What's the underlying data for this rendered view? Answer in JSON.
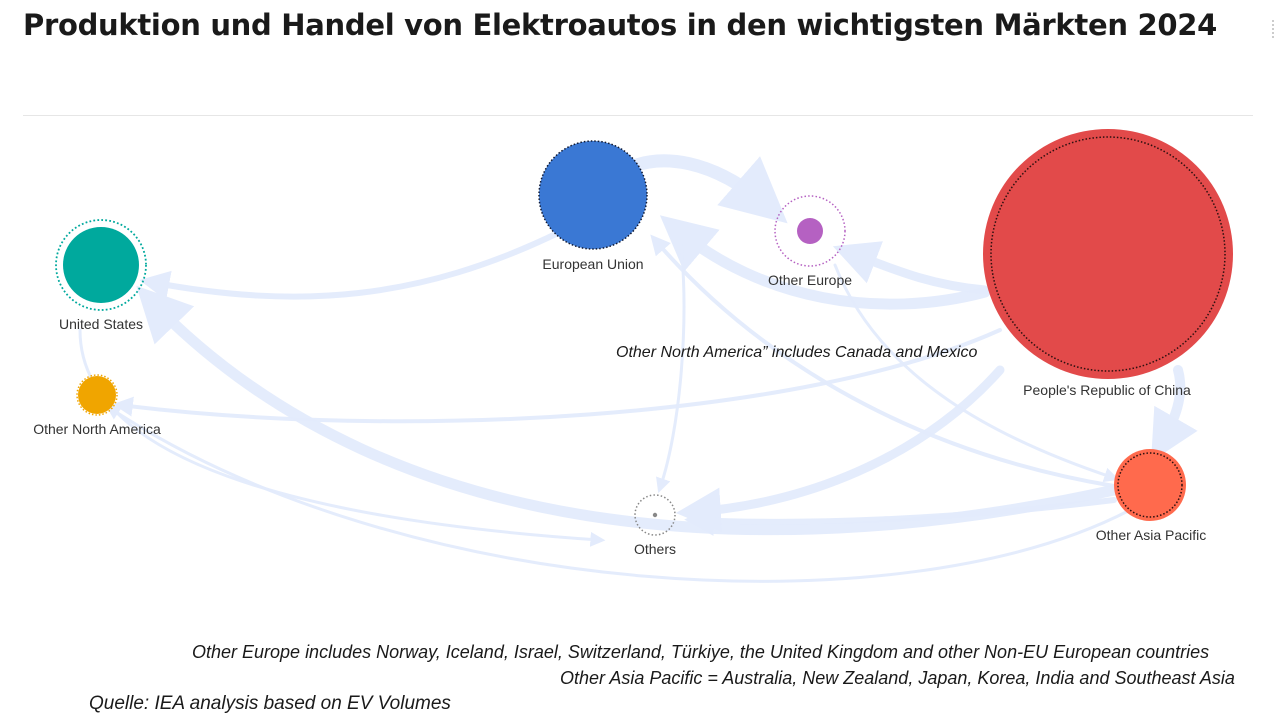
{
  "title": "Produktion und Handel von Elektroautos in den wichtigsten Märkten 2024",
  "nodes": [
    {
      "id": "china",
      "label": "People's Republic of China",
      "color": "#e24a4a"
    },
    {
      "id": "eu",
      "label": "European Union",
      "color": "#3a78d4"
    },
    {
      "id": "us",
      "label": "United States",
      "color": "#00a99d"
    },
    {
      "id": "other-europe",
      "label": "Other Europe",
      "color": "#b561c2"
    },
    {
      "id": "other-na",
      "label": "Other North America",
      "color": "#f0a500"
    },
    {
      "id": "other-ap",
      "label": "Other Asia Pacific",
      "color": "#ff6a4d"
    },
    {
      "id": "others",
      "label": "Others",
      "color": "#888888"
    }
  ],
  "flows": [
    {
      "from": "eu",
      "to": "other-europe"
    },
    {
      "from": "china",
      "to": "eu"
    },
    {
      "from": "china",
      "to": "other-europe"
    },
    {
      "from": "china",
      "to": "other-ap"
    },
    {
      "from": "china",
      "to": "others"
    },
    {
      "from": "china",
      "to": "other-na"
    },
    {
      "from": "eu",
      "to": "us"
    },
    {
      "from": "eu",
      "to": "others"
    },
    {
      "from": "other-ap",
      "to": "us"
    },
    {
      "from": "other-ap",
      "to": "eu"
    },
    {
      "from": "other-ap",
      "to": "others"
    },
    {
      "from": "other-ap",
      "to": "other-na"
    },
    {
      "from": "us",
      "to": "other-ap"
    },
    {
      "from": "other-europe",
      "to": "other-ap"
    }
  ],
  "notes": {
    "other_north_america": "Other North America” includes Canada and Mexico",
    "other_europe": "Other Europe includes Norway, Iceland, Israel, Switzerland, Türkiye, the United Kingdom and other Non-EU European countries",
    "other_asia_pacific": "Other Asia Pacific  = Australia, New Zealand, Japan, Korea, India and Southeast Asia"
  },
  "source": "Quelle: IEA analysis based on EV Volumes"
}
